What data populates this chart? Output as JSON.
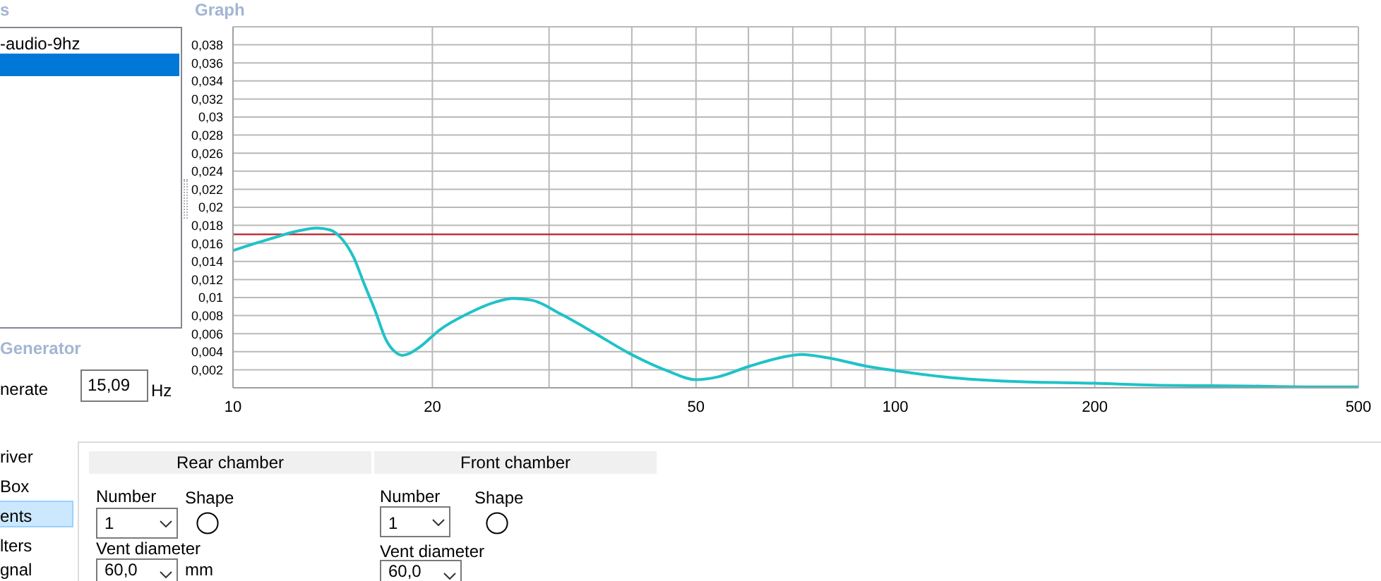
{
  "chart_data": {
    "type": "line",
    "title": "Graph",
    "x": [
      10,
      10.8,
      11.5,
      12.4,
      13.4,
      14,
      14.6,
      15.2,
      15.8,
      16.4,
      17,
      17.7,
      18,
      18.3,
      19.2,
      20.5,
      22.6,
      24.9,
      26.5,
      28.3,
      31.2,
      34.9,
      39.7,
      45.2,
      50,
      53.9,
      60.3,
      67.6,
      72.1,
      79.4,
      90.3,
      100,
      119,
      151,
      200,
      246,
      339,
      427,
      500
    ],
    "series": [
      {
        "color": "#20c2c8",
        "values": [
          0.0152,
          0.016,
          0.0166,
          0.0173,
          0.0177,
          0.0175,
          0.0165,
          0.0145,
          0.0114,
          0.0085,
          0.0054,
          0.0038,
          0.0036,
          0.0037,
          0.0046,
          0.0064,
          0.0082,
          0.0095,
          0.0099,
          0.0097,
          0.0082,
          0.0062,
          0.0038,
          0.0019,
          0.0009,
          0.0012,
          0.0024,
          0.0034,
          0.0037,
          0.0033,
          0.0024,
          0.0019,
          0.0012,
          0.0007,
          0.0005,
          0.0003,
          0.0002,
          0.0001,
          0.0001
        ]
      }
    ],
    "xlim": [
      10,
      500
    ],
    "xticks": [
      10,
      20,
      {
        "value": 30,
        "label": null
      },
      {
        "value": 40,
        "label": null
      },
      50,
      {
        "value": 60,
        "label": null
      },
      {
        "value": 70,
        "label": null
      },
      {
        "value": 80,
        "label": null
      },
      {
        "value": 90,
        "label": null
      },
      100,
      200,
      {
        "value": 300,
        "label": null
      },
      {
        "value": 400,
        "label": null
      },
      500
    ],
    "ylim": [
      0,
      0.04
    ],
    "yticks": [
      {
        "value": 0.002,
        "label": "0,002"
      },
      {
        "value": 0.004,
        "label": "0,004"
      },
      {
        "value": 0.006,
        "label": "0,006"
      },
      {
        "value": 0.008,
        "label": "0,008"
      },
      {
        "value": 0.01,
        "label": "0,01"
      },
      {
        "value": 0.012,
        "label": "0,012"
      },
      {
        "value": 0.014,
        "label": "0,014"
      },
      {
        "value": 0.016,
        "label": "0,016"
      },
      {
        "value": 0.018,
        "label": "0,018"
      },
      {
        "value": 0.02,
        "label": "0,02"
      },
      {
        "value": 0.022,
        "label": "0,022"
      },
      {
        "value": 0.024,
        "label": "0,024"
      },
      {
        "value": 0.026,
        "label": "0,026"
      },
      {
        "value": 0.028,
        "label": "0,028"
      },
      {
        "value": 0.03,
        "label": "0,03"
      },
      {
        "value": 0.032,
        "label": "0,032"
      },
      {
        "value": 0.034,
        "label": "0,034"
      },
      {
        "value": 0.036,
        "label": "0,036"
      },
      {
        "value": 0.038,
        "label": "0,038"
      }
    ],
    "log": "x",
    "grid": true,
    "marker": "none",
    "ref_lines": [
      {
        "axis": "y",
        "value": 0.017,
        "color": "#b3202c"
      }
    ],
    "annotations": [
      "s",
      "-audio-9hz",
      "Generator",
      "nerate",
      "15,09",
      "Hz",
      "river",
      "Box",
      "ents",
      "lters",
      "gnal",
      "Rear chamber",
      "Front chamber",
      "Number",
      "Shape",
      "1",
      "Vent diameter",
      "60,0",
      "mm",
      "Number",
      "Shape",
      "1",
      "Vent diameter",
      "60,0"
    ]
  }
}
